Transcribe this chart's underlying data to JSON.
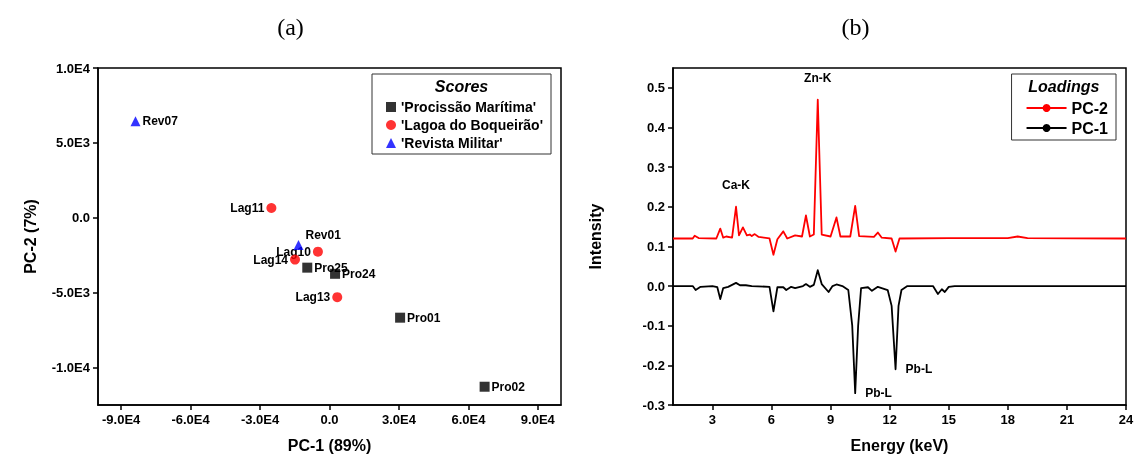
{
  "chart_data": [
    {
      "type": "scatter",
      "title": "(a)",
      "xlabel": "PC-1 (89%)",
      "ylabel": "PC-2 (7%)",
      "legend_title": "Scores",
      "legend": "top right",
      "grid": false,
      "xlim": [
        -100000,
        100000
      ],
      "ylim": [
        -12500,
        10000
      ],
      "xticks": [
        {
          "value": -90000,
          "label": "-9.0E4"
        },
        {
          "value": -60000,
          "label": "-6.0E4"
        },
        {
          "value": -30000,
          "label": "-3.0E4"
        },
        {
          "value": 0,
          "label": "0.0"
        },
        {
          "value": 30000,
          "label": "3.0E4"
        },
        {
          "value": 60000,
          "label": "6.0E4"
        },
        {
          "value": 90000,
          "label": "9.0E4"
        }
      ],
      "yticks": [
        {
          "value": -10000,
          "label": "-1.0E4"
        },
        {
          "value": -5000,
          "label": "-5.0E3"
        },
        {
          "value": 0,
          "label": "0.0"
        },
        {
          "value": 5000,
          "label": "5.0E3"
        },
        {
          "value": 10000,
          "label": "1.0E4"
        }
      ],
      "series": [
        {
          "name": "'Procissão Marítima'",
          "color": "#000000",
          "marker": "square",
          "x": [
            -9600,
            2400,
            30500,
            67000
          ],
          "values": [
            -3330,
            -3740,
            -6670,
            -11280
          ]
        },
        {
          "name": "'Lagoa do Boqueirão'",
          "color": "#ff0000",
          "marker": "circle",
          "x": [
            -25100,
            -5000,
            -14900,
            3350
          ],
          "values": [
            650,
            -2260,
            -2790,
            -5300
          ]
        },
        {
          "name": "'Revista Militar'",
          "color": "#0000ff",
          "marker": "triangle",
          "x": [
            -83800,
            -13400
          ],
          "values": [
            6440,
            -1810
          ]
        }
      ],
      "annotations": [
        {
          "text": "Rev07",
          "x": -83800,
          "y": 6440
        },
        {
          "text": "Rev01",
          "x": -13400,
          "y": -1810
        },
        {
          "text": "Lag11",
          "x": -25100,
          "y": 650
        },
        {
          "text": "Lag10",
          "x": -5000,
          "y": -2260
        },
        {
          "text": "Lag14",
          "x": -14900,
          "y": -2790
        },
        {
          "text": "Lag13",
          "x": 3350,
          "y": -5300
        },
        {
          "text": "Pro25",
          "x": -9600,
          "y": -3330
        },
        {
          "text": "Pro24",
          "x": 2400,
          "y": -3740
        },
        {
          "text": "Pro01",
          "x": 30500,
          "y": -6670
        },
        {
          "text": "Pro02",
          "x": 67000,
          "y": -11280
        }
      ]
    },
    {
      "type": "line",
      "title": "(b)",
      "xlabel": "Energy (keV)",
      "ylabel": "Intensity",
      "legend_title": "Loadings",
      "legend": "top right",
      "grid": false,
      "marker": "none",
      "line_style": "solid",
      "xlim": [
        1,
        24
      ],
      "ylim": [
        -0.3,
        0.55
      ],
      "xticks": [
        3,
        6,
        9,
        12,
        15,
        18,
        21,
        24
      ],
      "yticks": [
        {
          "value": -0.3,
          "label": "-0.3"
        },
        {
          "value": -0.2,
          "label": "-0.2"
        },
        {
          "value": -0.1,
          "label": "-0.1"
        },
        {
          "value": 0,
          "label": "0.0"
        },
        {
          "value": 0.1,
          "label": "0.1"
        },
        {
          "value": 0.2,
          "label": "0.2"
        },
        {
          "value": 0.3,
          "label": "0.3"
        },
        {
          "value": 0.4,
          "label": "0.4"
        },
        {
          "value": 0.5,
          "label": "0.5"
        }
      ],
      "series": [
        {
          "name": "PC-2",
          "color": "#ff0000",
          "x": [
            1,
            2.0,
            2.1,
            2.3,
            3.2,
            3.4,
            3.55,
            3.7,
            4.0,
            4.2,
            4.35,
            4.55,
            4.75,
            4.9,
            5.0,
            5.15,
            5.35,
            5.9,
            6.1,
            6.3,
            6.6,
            6.8,
            7.2,
            7.55,
            7.75,
            7.95,
            8.15,
            8.35,
            8.55,
            9.0,
            9.3,
            9.5,
            10.0,
            10.25,
            10.45,
            11.2,
            11.4,
            11.6,
            12.1,
            12.3,
            12.5,
            15,
            18.0,
            18.5,
            19.0,
            24
          ],
          "values": [
            0.12,
            0.12,
            0.127,
            0.121,
            0.12,
            0.145,
            0.122,
            0.125,
            0.122,
            0.2,
            0.128,
            0.148,
            0.128,
            0.13,
            0.126,
            0.131,
            0.124,
            0.12,
            0.079,
            0.118,
            0.138,
            0.12,
            0.128,
            0.125,
            0.178,
            0.125,
            0.13,
            0.47,
            0.13,
            0.125,
            0.173,
            0.125,
            0.125,
            0.202,
            0.126,
            0.124,
            0.135,
            0.122,
            0.12,
            0.087,
            0.12,
            0.121,
            0.121,
            0.125,
            0.121,
            0.12
          ]
        },
        {
          "name": "PC-1",
          "color": "#000000",
          "x": [
            1,
            2.0,
            2.15,
            2.4,
            3.0,
            3.25,
            3.4,
            3.55,
            3.8,
            4.2,
            4.4,
            4.7,
            5.0,
            5.9,
            6.1,
            6.3,
            6.6,
            6.75,
            7.0,
            7.2,
            7.6,
            7.75,
            7.95,
            8.15,
            8.35,
            8.55,
            8.9,
            9.1,
            9.3,
            9.6,
            9.9,
            10.1,
            10.25,
            10.4,
            10.55,
            10.9,
            11.1,
            11.4,
            11.9,
            12.1,
            12.3,
            12.45,
            12.6,
            12.9,
            14.2,
            14.45,
            14.65,
            14.8,
            15.0,
            15.3,
            24
          ],
          "values": [
            0,
            0,
            -0.01,
            -0.002,
            0,
            -0.003,
            -0.033,
            -0.005,
            -0.002,
            0.008,
            0.002,
            0.002,
            0,
            -0.002,
            -0.064,
            -0.003,
            -0.003,
            -0.01,
            -0.002,
            -0.005,
            0,
            0.005,
            -0.002,
            0.003,
            0.04,
            0.005,
            -0.015,
            0,
            0.004,
            0,
            -0.01,
            -0.1,
            -0.27,
            -0.1,
            -0.005,
            -0.003,
            -0.012,
            -0.002,
            -0.01,
            -0.05,
            -0.21,
            -0.05,
            -0.01,
            0,
            0,
            -0.02,
            -0.008,
            -0.015,
            -0.002,
            0,
            0
          ]
        }
      ],
      "annotations": [
        {
          "text": "Ca-K",
          "x": 4.2,
          "y": 0.2
        },
        {
          "text": "Zn-K",
          "x": 8.35,
          "y": 0.47
        },
        {
          "text": "Pb-L",
          "x": 10.25,
          "y": -0.27
        },
        {
          "text": "Pb-L",
          "x": 12.3,
          "y": -0.21
        }
      ]
    }
  ]
}
